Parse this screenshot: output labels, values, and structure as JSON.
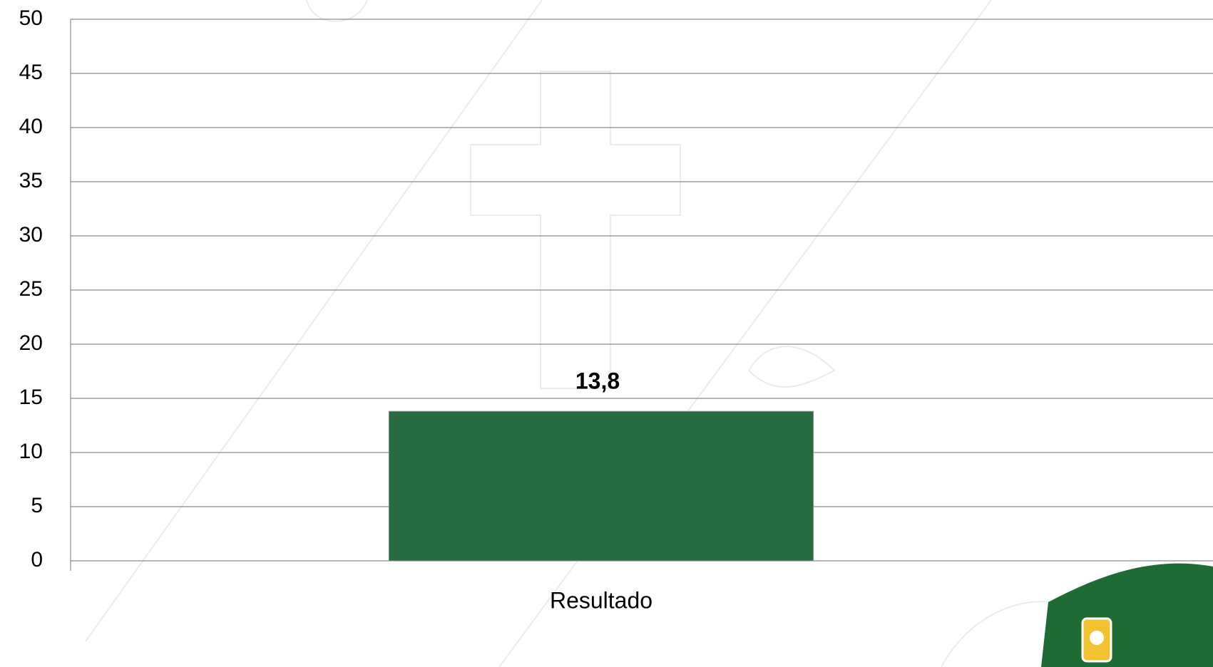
{
  "chart_data": {
    "type": "bar",
    "categories": [
      "Resultado"
    ],
    "values": [
      13.8
    ],
    "value_labels": [
      "13,8"
    ],
    "color": "#276b41",
    "ylim": [
      0,
      50
    ],
    "yticks": [
      0,
      5,
      10,
      15,
      20,
      25,
      30,
      35,
      40,
      45,
      50
    ],
    "grid": true
  }
}
